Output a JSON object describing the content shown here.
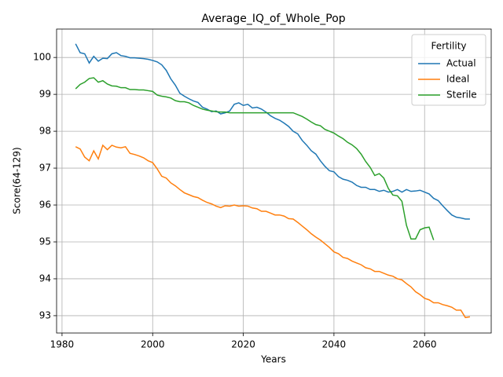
{
  "chart_data": {
    "type": "line",
    "title": "Average_IQ_of_Whole_Pop",
    "x_label": "Years",
    "y_label": "Score(64-129)",
    "x": [
      1983,
      1984,
      1985,
      1986,
      1987,
      1988,
      1989,
      1990,
      1991,
      1992,
      1993,
      1994,
      1995,
      1996,
      1997,
      1998,
      1999,
      2000,
      2001,
      2002,
      2003,
      2004,
      2005,
      2006,
      2007,
      2008,
      2009,
      2010,
      2011,
      2012,
      2013,
      2014,
      2015,
      2016,
      2017,
      2018,
      2019,
      2020,
      2021,
      2022,
      2023,
      2024,
      2025,
      2026,
      2027,
      2028,
      2029,
      2030,
      2031,
      2032,
      2033,
      2034,
      2035,
      2036,
      2037,
      2038,
      2039,
      2040,
      2041,
      2042,
      2043,
      2044,
      2045,
      2046,
      2047,
      2048,
      2049,
      2050,
      2051,
      2052,
      2053,
      2054,
      2055,
      2056,
      2057,
      2058,
      2059,
      2060,
      2061,
      2062,
      2063,
      2064,
      2065,
      2066,
      2067,
      2068,
      2069,
      2070
    ],
    "series": [
      {
        "name": "Actual",
        "color": "#1f77b4",
        "values": [
          100.37,
          100.13,
          100.1,
          99.85,
          100.03,
          99.9,
          99.98,
          99.97,
          100.1,
          100.13,
          100.05,
          100.03,
          99.99,
          99.99,
          99.98,
          99.97,
          99.95,
          99.92,
          99.88,
          99.8,
          99.65,
          99.42,
          99.25,
          99.03,
          98.95,
          98.88,
          98.82,
          98.78,
          98.65,
          98.6,
          98.53,
          98.55,
          98.47,
          98.5,
          98.55,
          98.73,
          98.77,
          98.7,
          98.73,
          98.63,
          98.65,
          98.6,
          98.52,
          98.42,
          98.35,
          98.3,
          98.22,
          98.13,
          98.0,
          97.93,
          97.75,
          97.62,
          97.47,
          97.38,
          97.2,
          97.05,
          96.93,
          96.9,
          96.77,
          96.7,
          96.67,
          96.62,
          96.53,
          96.48,
          96.48,
          96.42,
          96.42,
          96.37,
          96.4,
          96.35,
          96.37,
          96.42,
          96.35,
          96.42,
          96.37,
          96.38,
          96.4,
          96.35,
          96.3,
          96.18,
          96.12,
          95.98,
          95.85,
          95.73,
          95.67,
          95.65,
          95.62,
          95.62
        ]
      },
      {
        "name": "Ideal",
        "color": "#ff7f0e",
        "values": [
          97.58,
          97.52,
          97.3,
          97.2,
          97.47,
          97.25,
          97.62,
          97.5,
          97.62,
          97.57,
          97.55,
          97.58,
          97.4,
          97.37,
          97.33,
          97.28,
          97.2,
          97.15,
          96.98,
          96.78,
          96.73,
          96.6,
          96.52,
          96.42,
          96.33,
          96.28,
          96.23,
          96.2,
          96.13,
          96.07,
          96.03,
          95.97,
          95.93,
          95.98,
          95.97,
          96.0,
          95.97,
          95.98,
          95.97,
          95.92,
          95.9,
          95.83,
          95.83,
          95.78,
          95.73,
          95.73,
          95.7,
          95.63,
          95.62,
          95.53,
          95.43,
          95.33,
          95.22,
          95.13,
          95.05,
          94.95,
          94.85,
          94.73,
          94.68,
          94.58,
          94.55,
          94.48,
          94.43,
          94.38,
          94.3,
          94.27,
          94.2,
          94.2,
          94.15,
          94.1,
          94.07,
          94.0,
          93.97,
          93.87,
          93.78,
          93.65,
          93.57,
          93.47,
          93.43,
          93.35,
          93.35,
          93.3,
          93.27,
          93.23,
          93.15,
          93.15,
          92.95,
          92.97
        ]
      },
      {
        "name": "Sterile",
        "color": "#2ca02c",
        "values": [
          99.15,
          99.27,
          99.33,
          99.43,
          99.45,
          99.33,
          99.37,
          99.28,
          99.23,
          99.22,
          99.18,
          99.18,
          99.13,
          99.13,
          99.12,
          99.12,
          99.1,
          99.08,
          98.98,
          98.95,
          98.93,
          98.9,
          98.83,
          98.8,
          98.8,
          98.77,
          98.7,
          98.65,
          98.6,
          98.57,
          98.55,
          98.53,
          98.52,
          98.52,
          98.5,
          98.5,
          98.5,
          98.5,
          98.5,
          98.5,
          98.5,
          98.5,
          98.5,
          98.5,
          98.5,
          98.5,
          98.5,
          98.5,
          98.5,
          98.45,
          98.4,
          98.33,
          98.25,
          98.18,
          98.15,
          98.05,
          98.0,
          97.95,
          97.87,
          97.8,
          97.7,
          97.63,
          97.53,
          97.38,
          97.18,
          97.02,
          96.8,
          96.85,
          96.73,
          96.45,
          96.27,
          96.25,
          96.1,
          95.45,
          95.08,
          95.08,
          95.33,
          95.38,
          95.4,
          95.05,
          null,
          null,
          null,
          null,
          null,
          null,
          null,
          null
        ]
      }
    ],
    "xlim": [
      1978.8,
      2074.7
    ],
    "ylim": [
      92.53,
      100.77
    ],
    "xticks": [
      1980,
      2000,
      2020,
      2040,
      2060
    ],
    "yticks": [
      93,
      94,
      95,
      96,
      97,
      98,
      99,
      100
    ],
    "grid": true,
    "legend_title": "Fertility",
    "legend_position": "upper right"
  }
}
